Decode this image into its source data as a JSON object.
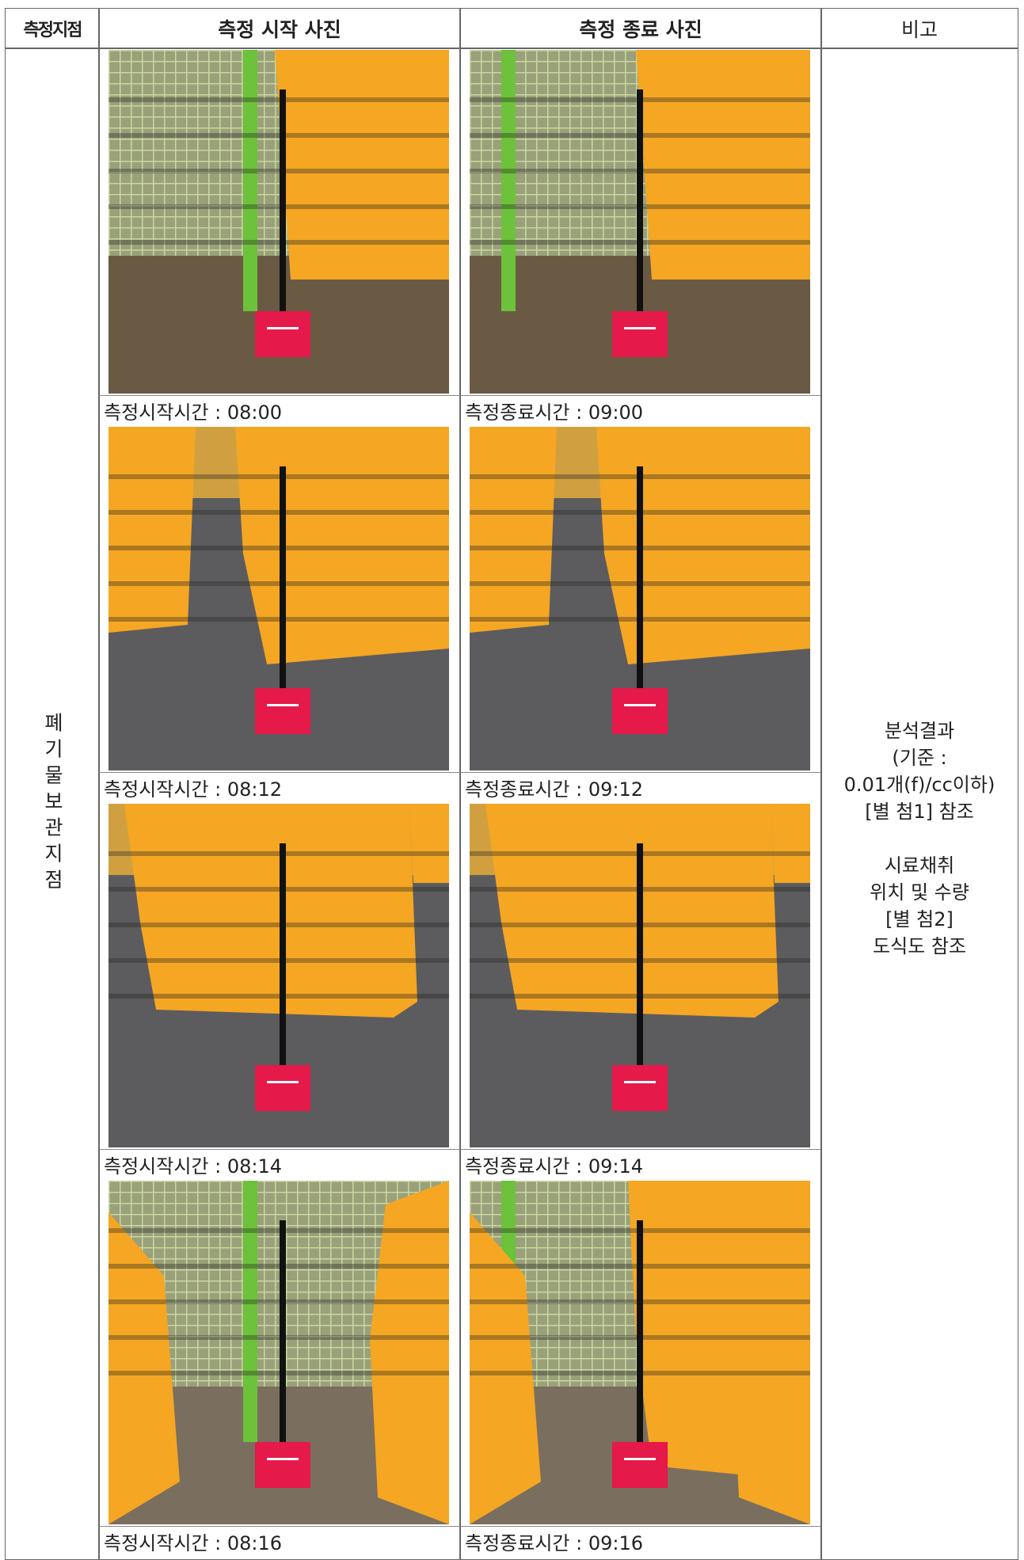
{
  "table": {
    "headers": [
      "측정지점",
      "측정 시작 사진",
      "측정 종료 사진",
      "비고"
    ],
    "location": "폐기물보관지점",
    "rows": [
      {
        "start_caption": "측정시작시간 : 08:00",
        "end_caption": "측정종료시간 : 09:00"
      },
      {
        "start_caption": "측정시작시간 : 08:12",
        "end_caption": "측정종료시간 : 09:12"
      },
      {
        "start_caption": "측정시작시간 : 08:14",
        "end_caption": "측정종료시간 : 09:14"
      },
      {
        "start_caption": "측정시작시간 : 08:16",
        "end_caption": "측정종료시간 : 09:16"
      }
    ],
    "remarks": [
      [
        "분석결과",
        "(기준 :",
        "0.01개(f)/cc이하)",
        "[별 첨1] 참조"
      ],
      [
        "시료채취",
        "위치 및 수량",
        "[별 첨2]",
        "도식도 참조"
      ]
    ]
  }
}
